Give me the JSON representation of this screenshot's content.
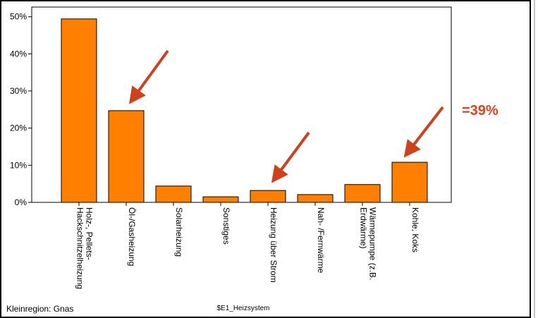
{
  "chart_data": {
    "type": "bar",
    "categories": [
      [
        "Holz-, Pellets-",
        "Hackschnitzelheizung"
      ],
      [
        "Öl-/Gasheizung"
      ],
      [
        "Solarheizung"
      ],
      [
        "Sonstiges"
      ],
      [
        "Heizung über Strom"
      ],
      [
        "Nah- /Fernwärme"
      ],
      [
        "Wärmepumpe (z.B.",
        "Erdwärme)"
      ],
      [
        "Kohle, Koks"
      ]
    ],
    "values": [
      49.4,
      24.7,
      4.4,
      1.5,
      3.2,
      2.1,
      4.8,
      10.8
    ],
    "color": "#ff7f00",
    "ylim": [
      0,
      52.6
    ],
    "yticks": [
      {
        "value": 0,
        "label": "0%"
      },
      {
        "value": 10,
        "label": "10%"
      },
      {
        "value": 20,
        "label": "20%"
      },
      {
        "value": 30,
        "label": "30%"
      },
      {
        "value": 40,
        "label": "40%"
      },
      {
        "value": 50,
        "label": "50%"
      }
    ],
    "xlabel": "$E1_Heizsystem",
    "footnote": "Kleinregion: Gnas",
    "annotation": "=39%"
  }
}
